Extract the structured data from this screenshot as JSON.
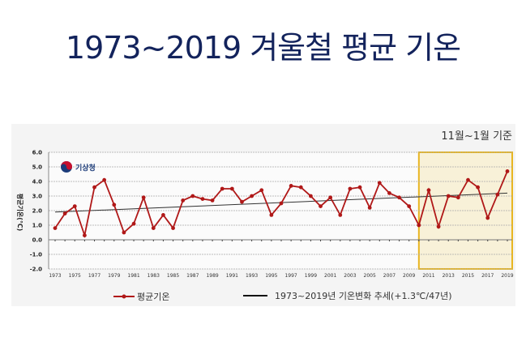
{
  "title": "1973~2019 겨울철 평균 기온",
  "chart_data": {
    "type": "line",
    "title": "1973~2019 겨울철 평균 기온",
    "subtitle": "11월~1월 기준",
    "ylabel": "평균기온(℃)",
    "xlabel": "",
    "logo_text": "기상청",
    "ylim": [
      -2.0,
      6.0
    ],
    "yticks": [
      "6.0",
      "5.0",
      "4.0",
      "3.0",
      "2.0",
      "1.0",
      "0.0",
      "-1.0",
      "-2.0"
    ],
    "grid": true,
    "x": [
      1973,
      1974,
      1975,
      1976,
      1977,
      1978,
      1979,
      1980,
      1981,
      1982,
      1983,
      1984,
      1985,
      1986,
      1987,
      1988,
      1989,
      1990,
      1991,
      1992,
      1993,
      1994,
      1995,
      1996,
      1997,
      1998,
      1999,
      2000,
      2001,
      2002,
      2003,
      2004,
      2005,
      2006,
      2007,
      2008,
      2009,
      2010,
      2011,
      2012,
      2013,
      2014,
      2015,
      2016,
      2017,
      2018,
      2019
    ],
    "xtick_labels": [
      "1973",
      "1975",
      "1977",
      "1979",
      "1981",
      "1983",
      "1985",
      "1987",
      "1989",
      "1991",
      "1993",
      "1995",
      "1997",
      "1999",
      "2001",
      "2003",
      "2005",
      "2007",
      "2009",
      "2011",
      "2013",
      "2015",
      "2017",
      "2019"
    ],
    "series": [
      {
        "name": "평균기온",
        "color": "#b01818",
        "values": [
          0.8,
          1.8,
          2.3,
          0.3,
          3.6,
          4.1,
          2.4,
          0.5,
          1.1,
          2.9,
          0.8,
          1.7,
          0.8,
          2.7,
          3.0,
          2.8,
          2.7,
          3.5,
          3.5,
          2.6,
          3.0,
          3.4,
          1.7,
          2.5,
          3.7,
          3.6,
          3.0,
          2.3,
          2.9,
          1.7,
          3.5,
          3.6,
          2.2,
          3.9,
          3.2,
          2.9,
          2.3,
          1.0,
          3.4,
          0.9,
          3.0,
          2.9,
          4.1,
          3.6,
          1.5,
          3.1,
          4.7
        ]
      },
      {
        "name": "1973~2019년 기온변화 추세(+1.3℃/47년)",
        "color": "#333333",
        "type": "trend",
        "start": 1.9,
        "end": 3.2
      }
    ],
    "highlight": {
      "from": 2010,
      "to": 2019,
      "color": "#e8b622"
    },
    "legend": "bottom"
  }
}
